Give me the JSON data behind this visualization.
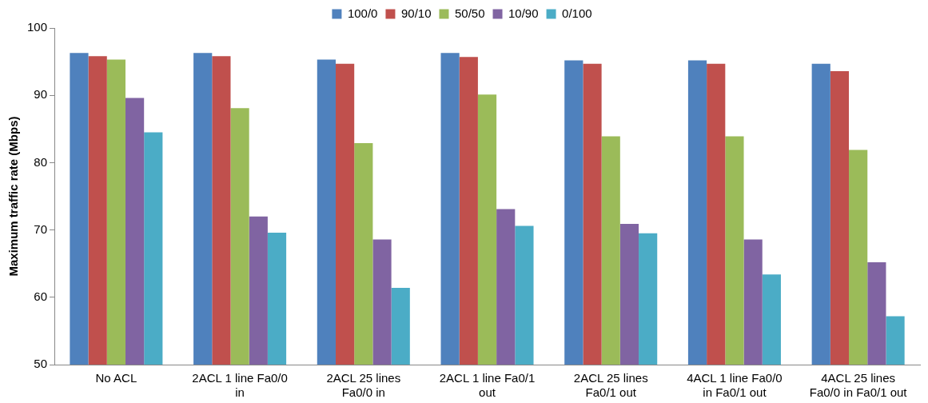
{
  "chart_data": {
    "type": "bar",
    "ylabel": "Maximum traffic rate (Mbps)",
    "categories": [
      "No ACL",
      "2ACL 1 line Fa0/0 in",
      "2ACL 25 lines Fa0/0 in",
      "2ACL 1 line Fa0/1 out",
      "2ACL 25 lines Fa0/1 out",
      "4ACL 1 line Fa0/0 in Fa0/1 out",
      "4ACL 25 lines Fa0/0 in Fa0/1 out"
    ],
    "series": [
      {
        "name": "100/0",
        "color": "#4f81bd",
        "values": [
          96.3,
          96.3,
          95.3,
          96.3,
          95.2,
          95.2,
          94.7
        ]
      },
      {
        "name": "90/10",
        "color": "#c0504d",
        "values": [
          95.8,
          95.8,
          94.7,
          95.7,
          94.7,
          94.7,
          93.6
        ]
      },
      {
        "name": "50/50",
        "color": "#9bbb59",
        "values": [
          95.3,
          88.1,
          82.9,
          90.1,
          83.9,
          83.9,
          81.9
        ]
      },
      {
        "name": "10/90",
        "color": "#8064a2",
        "values": [
          89.6,
          72.0,
          68.6,
          73.1,
          70.9,
          68.6,
          65.2
        ]
      },
      {
        "name": "0/100",
        "color": "#4bacc6",
        "values": [
          84.5,
          69.6,
          61.4,
          70.6,
          69.5,
          63.4,
          57.2
        ]
      }
    ],
    "ylim": [
      50,
      100
    ],
    "yticks": [
      50,
      60,
      70,
      80,
      90,
      100
    ],
    "grid": false,
    "legend": "top"
  }
}
